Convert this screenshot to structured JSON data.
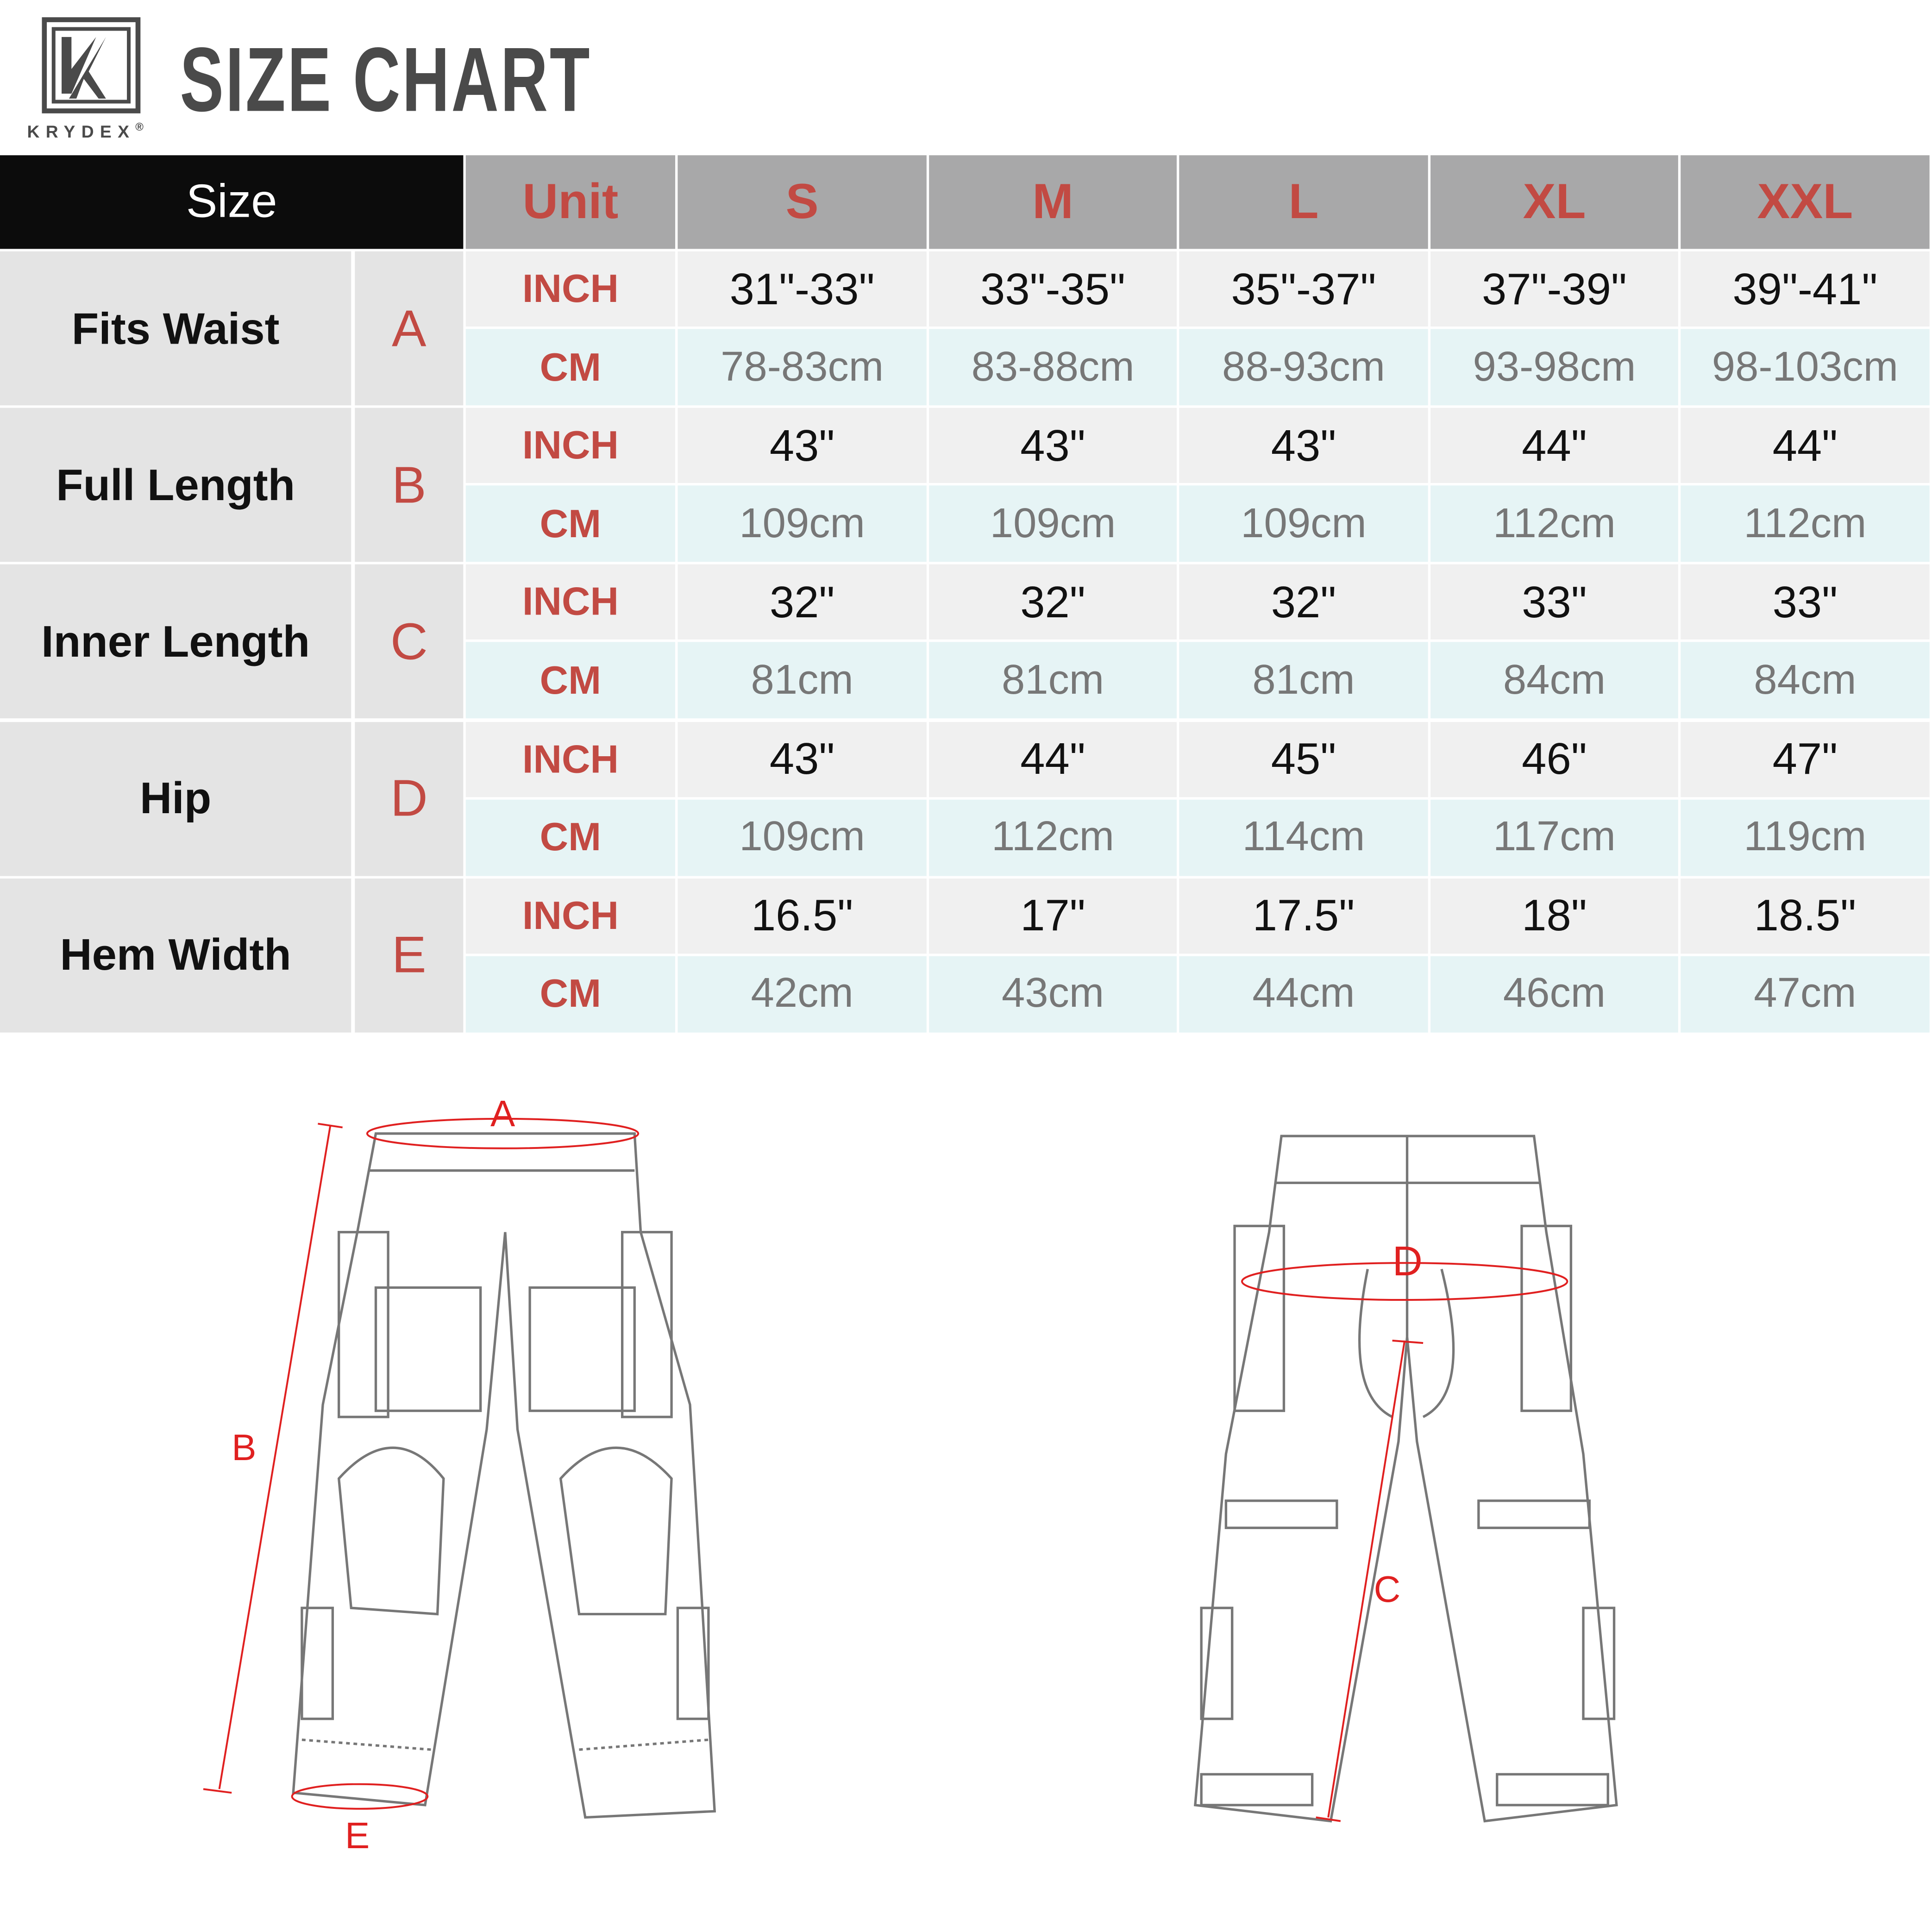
{
  "brand": {
    "name": "KRYDEX",
    "registered": "®",
    "title": "SIZE CHART"
  },
  "table": {
    "size_header": "Size",
    "unit_header": "Unit",
    "sizes": [
      "S",
      "M",
      "L",
      "XL",
      "XXL"
    ],
    "rows": [
      {
        "label": "Fits Waist",
        "letter": "A",
        "inch": [
          "31\"-33\"",
          "33\"-35\"",
          "35\"-37\"",
          "37\"-39\"",
          "39\"-41\""
        ],
        "cm": [
          "78-83cm",
          "83-88cm",
          "88-93cm",
          "93-98cm",
          "98-103cm"
        ]
      },
      {
        "label": "Full Length",
        "letter": "B",
        "inch": [
          "43\"",
          "43\"",
          "43\"",
          "44\"",
          "44\""
        ],
        "cm": [
          "109cm",
          "109cm",
          "109cm",
          "112cm",
          "112cm"
        ]
      },
      {
        "label": "Inner Length",
        "letter": "C",
        "inch": [
          "32\"",
          "32\"",
          "32\"",
          "33\"",
          "33\""
        ],
        "cm": [
          "81cm",
          "81cm",
          "81cm",
          "84cm",
          "84cm"
        ]
      },
      {
        "label": "Hip",
        "letter": "D",
        "inch": [
          "43\"",
          "44\"",
          "45\"",
          "46\"",
          "47\""
        ],
        "cm": [
          "109cm",
          "112cm",
          "114cm",
          "117cm",
          "119cm"
        ]
      },
      {
        "label": "Hem Width",
        "letter": "E",
        "inch": [
          "16.5\"",
          "17\"",
          "17.5\"",
          "18\"",
          "18.5\""
        ],
        "cm": [
          "42cm",
          "43cm",
          "44cm",
          "46cm",
          "47cm"
        ]
      }
    ],
    "unit_inch": "INCH",
    "unit_cm": "CM"
  },
  "diagram": {
    "labels": {
      "a": "A",
      "b": "B",
      "c": "C",
      "d": "D",
      "e": "E"
    }
  },
  "colors": {
    "accent": "#c24a43",
    "header_bg": "#0c0c0c",
    "col_header_bg": "#a8a8a9",
    "inch_bg": "#f0f0f0",
    "cm_bg": "#e6f4f5",
    "measure_line": "#e02020"
  }
}
